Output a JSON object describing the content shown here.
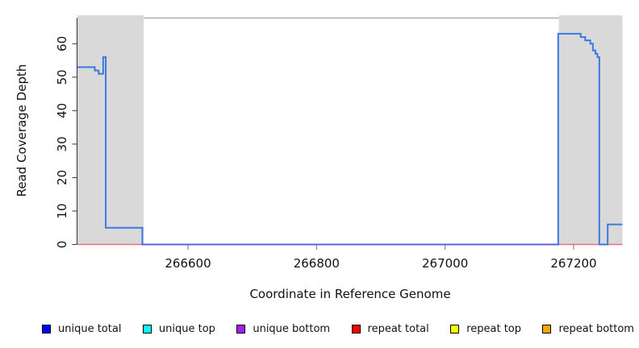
{
  "chart_data": {
    "type": "line",
    "title": "",
    "xlabel": "Coordinate in Reference Genome",
    "ylabel": "Read Coverage Depth",
    "xlim": [
      266428,
      267276
    ],
    "ylim": [
      0,
      67.7
    ],
    "xticks": [
      266600,
      266800,
      267000,
      267200
    ],
    "yticks": [
      0,
      10,
      20,
      30,
      40,
      50,
      60
    ],
    "grid": false,
    "legend_position": "bottom",
    "shaded_regions": {
      "color": "#D9D9D9",
      "ranges": [
        [
          266428,
          266531
        ],
        [
          267177,
          267276
        ]
      ]
    },
    "series": [
      {
        "name": "repeat total",
        "color": "#EF6A7D",
        "width": 1.4,
        "steps": [
          [
            266428,
            267276,
            0
          ]
        ]
      },
      {
        "name": "unique total",
        "color": "#3A78E2",
        "width": 2,
        "steps": [
          [
            266428,
            266455,
            53
          ],
          [
            266455,
            266461,
            52
          ],
          [
            266461,
            266468,
            51
          ],
          [
            266468,
            266472,
            56
          ],
          [
            266472,
            266529,
            5
          ],
          [
            266529,
            267176,
            0
          ],
          [
            267176,
            267211,
            63
          ],
          [
            267211,
            267218,
            62
          ],
          [
            267218,
            267226,
            61
          ],
          [
            267226,
            267230,
            60
          ],
          [
            267230,
            267234,
            58
          ],
          [
            267234,
            267237,
            57
          ],
          [
            267237,
            267240,
            56
          ],
          [
            267240,
            267253,
            0
          ],
          [
            267253,
            267276,
            6
          ]
        ]
      },
      {
        "name": "unique bottom",
        "color": "#615CE0",
        "width": 1.8,
        "steps": [
          [
            266529,
            267176,
            0
          ]
        ]
      }
    ],
    "legend": [
      {
        "label": "unique total",
        "color": "#0000FF"
      },
      {
        "label": "unique top",
        "color": "#00FFFF"
      },
      {
        "label": "unique bottom",
        "color": "#A020F0"
      },
      {
        "label": "repeat total",
        "color": "#FF0000"
      },
      {
        "label": "repeat top",
        "color": "#FFFF00"
      },
      {
        "label": "repeat bottom",
        "color": "#FFA500"
      }
    ]
  }
}
